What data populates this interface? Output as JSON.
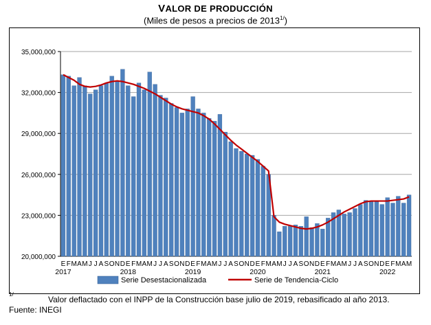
{
  "title": "Valor de Producción",
  "title_first": "V",
  "title_rest": "ALOR DE PRODUCCIÓN",
  "subtitle": "(Miles de pesos a precios de 2013",
  "subtitle_sup": "1/",
  "subtitle_end": ")",
  "footnote_marker": "1/",
  "footnote_text": "Valor deflactado con el INPP de la Construcción base julio de 2019, rebasificado al año 2013.",
  "source": "Fuente: INEGI",
  "colors": {
    "bar": "#4f81bd",
    "bar_edge": "#365f91",
    "trend": "#c00000"
  },
  "chart_data": {
    "type": "bar",
    "ylim": [
      20000000,
      35000000
    ],
    "yticks": [
      20000000,
      23000000,
      26000000,
      29000000,
      32000000,
      35000000
    ],
    "ytick_labels": [
      "20,000,000",
      "23,000,000",
      "26,000,000",
      "29,000,000",
      "32,000,000",
      "35,000,000"
    ],
    "month_labels": [
      "E",
      "F",
      "M",
      "A",
      "M",
      "J",
      "J",
      "A",
      "S",
      "O",
      "N",
      "D",
      "E",
      "F",
      "M",
      "A",
      "M",
      "J",
      "J",
      "A",
      "S",
      "O",
      "N",
      "D",
      "E",
      "F",
      "M",
      "A",
      "M",
      "J",
      "J",
      "A",
      "S",
      "O",
      "N",
      "D",
      "E",
      "F",
      "M",
      "A",
      "M",
      "J",
      "J",
      "A",
      "S",
      "O",
      "N",
      "D",
      "E",
      "F",
      "M",
      "A",
      "M",
      "J",
      "J",
      "A",
      "S",
      "O",
      "N",
      "D",
      "E",
      "F",
      "M",
      "A",
      "M"
    ],
    "years": [
      {
        "label": "2017",
        "start_index": 0
      },
      {
        "label": "2018",
        "start_index": 12
      },
      {
        "label": "2019",
        "start_index": 24
      },
      {
        "label": "2020",
        "start_index": 36
      },
      {
        "label": "2021",
        "start_index": 48
      },
      {
        "label": "2022",
        "start_index": 60
      }
    ],
    "grid": "horizontal",
    "legend_position": "bottom",
    "series": [
      {
        "name": "Serie Desestacionalizada",
        "type": "bar",
        "values": [
          33300000,
          33200000,
          32500000,
          33100000,
          32500000,
          31900000,
          32200000,
          32500000,
          32700000,
          33200000,
          32800000,
          33700000,
          32500000,
          31700000,
          32700000,
          32200000,
          33500000,
          32600000,
          31800000,
          31600000,
          31200000,
          30900000,
          30500000,
          30800000,
          31700000,
          30800000,
          30500000,
          30100000,
          29900000,
          30400000,
          29100000,
          28400000,
          27900000,
          27700000,
          27500000,
          27400000,
          27100000,
          26600000,
          26000000,
          23000000,
          21800000,
          22200000,
          22200000,
          22300000,
          22200000,
          22900000,
          22100000,
          22400000,
          22000000,
          22800000,
          23200000,
          23400000,
          23100000,
          23200000,
          23500000,
          23800000,
          24100000,
          24000000,
          24000000,
          23800000,
          24300000,
          23900000,
          24400000,
          23900000,
          24500000
        ]
      },
      {
        "name": "Serie de Tendencia-Ciclo",
        "type": "line",
        "values": [
          33300000,
          33100000,
          32900000,
          32600000,
          32450000,
          32400000,
          32450000,
          32550000,
          32700000,
          32800000,
          32850000,
          32800000,
          32700000,
          32600000,
          32450000,
          32300000,
          32100000,
          31900000,
          31650000,
          31400000,
          31150000,
          30950000,
          30800000,
          30700000,
          30600000,
          30500000,
          30300000,
          30050000,
          29700000,
          29300000,
          28900000,
          28500000,
          28150000,
          27850000,
          27550000,
          27250000,
          26950000,
          26600000,
          26250000,
          22900000,
          22500000,
          22350000,
          22250000,
          22150000,
          22050000,
          22000000,
          22050000,
          22150000,
          22300000,
          22500000,
          22750000,
          23000000,
          23250000,
          23450000,
          23650000,
          23850000,
          24000000,
          24050000,
          24050000,
          24050000,
          24050000,
          24100000,
          24150000,
          24200000,
          24350000
        ]
      }
    ]
  }
}
